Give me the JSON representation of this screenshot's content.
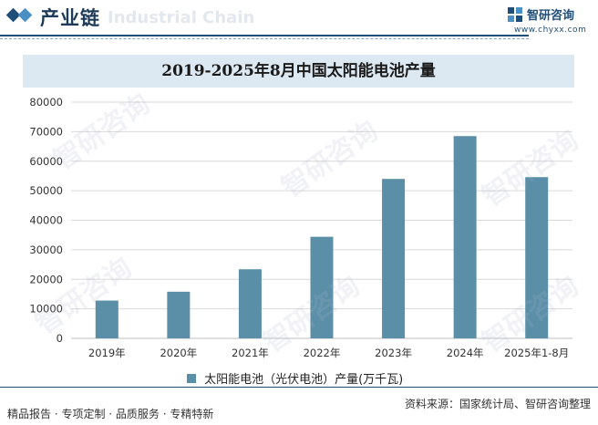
{
  "header": {
    "section_title": "产业链",
    "watermark_en": "Industrial Chain",
    "logo_name": "智研咨询",
    "logo_url": "www.chyxx.com"
  },
  "watermark_text": "智研咨询",
  "colors": {
    "bar": "#5b8fa8",
    "title_bg": "#dde9f2",
    "brand": "#1f4e79"
  },
  "chart_data": {
    "type": "bar",
    "title": "2019-2025年8月中国太阳能电池产量",
    "categories": [
      "2019年",
      "2020年",
      "2021年",
      "2022年",
      "2023年",
      "2024年",
      "2025年1-8月"
    ],
    "series": [
      {
        "name": "太阳能电池（光伏电池）产量(万千瓦)",
        "values": [
          12800,
          15800,
          23400,
          34400,
          54000,
          68500,
          54600
        ]
      }
    ],
    "ylim": [
      0,
      80000
    ],
    "yticks": [
      0,
      10000,
      20000,
      30000,
      40000,
      50000,
      60000,
      70000,
      80000
    ],
    "grid": true,
    "legend_position": "bottom"
  },
  "footer": {
    "left": "精品报告 · 专项定制 · 品质服务 · 专精特新",
    "right": "资料来源：国家统计局、智研咨询整理"
  }
}
